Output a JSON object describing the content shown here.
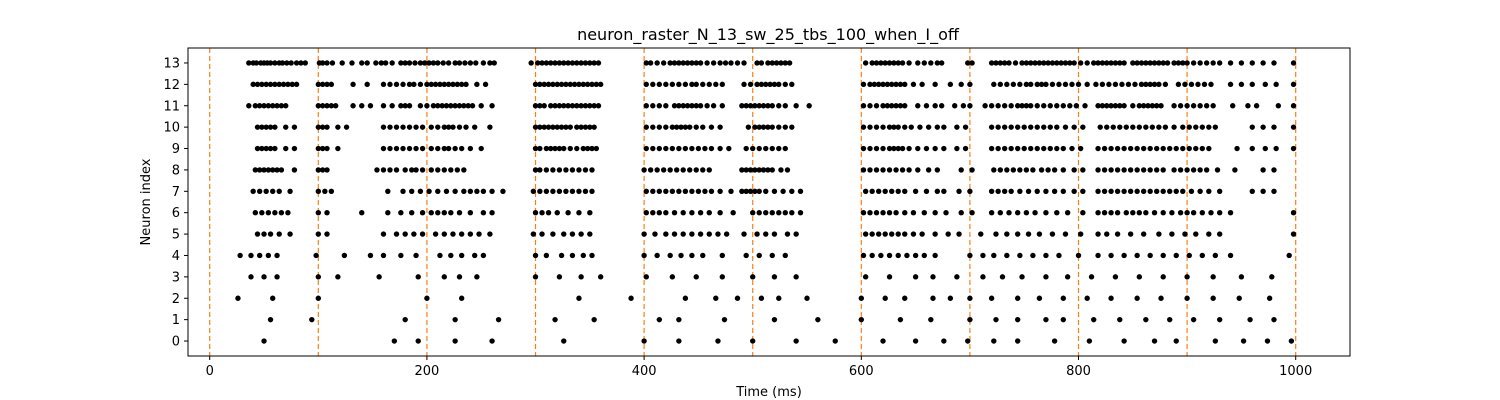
{
  "chart_data": {
    "type": "scatter",
    "title": "neuron_raster_N_13_sw_25_tbs_100_when_I_off",
    "xlabel": "Time (ms)",
    "ylabel": "Neuron index",
    "xlim": [
      -20,
      1050
    ],
    "ylim": [
      -0.7,
      13.7
    ],
    "xticks": [
      0,
      200,
      400,
      600,
      800,
      1000
    ],
    "yticks": [
      0,
      1,
      2,
      3,
      4,
      5,
      6,
      7,
      8,
      9,
      10,
      11,
      12,
      13
    ],
    "grid": false,
    "marker_color": "#000000",
    "vline_color": "#ff7f0e",
    "vlines": [
      0,
      100,
      200,
      300,
      400,
      500,
      600,
      700,
      800,
      900,
      1000
    ],
    "series": [
      {
        "neuron": 13,
        "times": [
          36,
          40,
          43,
          47,
          50,
          53,
          56,
          60,
          64,
          67,
          71,
          75,
          80,
          84,
          88,
          101,
          104,
          108,
          113,
          122,
          131,
          140,
          145,
          153,
          158,
          162,
          168,
          176,
          180,
          184,
          189,
          194,
          198,
          202,
          206,
          210,
          215,
          220,
          226,
          230,
          235,
          240,
          245,
          252,
          258,
          262,
          296,
          302,
          306,
          310,
          314,
          318,
          322,
          326,
          330,
          334,
          338,
          342,
          346,
          350,
          354,
          358,
          402,
          406,
          412,
          418,
          424,
          428,
          432,
          436,
          440,
          444,
          448,
          452,
          458,
          464,
          470,
          475,
          480,
          486,
          492,
          504,
          508,
          514,
          518,
          522,
          526,
          530,
          534,
          604,
          610,
          614,
          618,
          622,
          626,
          630,
          634,
          638,
          644,
          652,
          658,
          664,
          670,
          674,
          698,
          702,
          720,
          724,
          728,
          732,
          736,
          742,
          748,
          752,
          756,
          760,
          764,
          768,
          772,
          776,
          780,
          784,
          788,
          792,
          796,
          802,
          808,
          814,
          818,
          822,
          826,
          830,
          834,
          838,
          842,
          850,
          854,
          858,
          862,
          866,
          870,
          874,
          878,
          882,
          888,
          892,
          896,
          900,
          906,
          912,
          918,
          924,
          930,
          940,
          950,
          960,
          970,
          980,
          998
        ]
      },
      {
        "neuron": 12,
        "times": [
          40,
          44,
          48,
          52,
          56,
          60,
          64,
          68,
          72,
          76,
          80,
          100,
          104,
          108,
          112,
          132,
          145,
          160,
          166,
          172,
          178,
          184,
          188,
          194,
          200,
          204,
          208,
          212,
          216,
          220,
          224,
          228,
          232,
          236,
          246,
          254,
          300,
          304,
          308,
          312,
          316,
          320,
          324,
          328,
          332,
          336,
          340,
          344,
          348,
          352,
          356,
          360,
          402,
          408,
          414,
          420,
          426,
          432,
          438,
          444,
          448,
          454,
          460,
          466,
          472,
          492,
          498,
          504,
          508,
          512,
          516,
          520,
          524,
          530,
          536,
          602,
          608,
          612,
          616,
          620,
          624,
          628,
          632,
          636,
          640,
          648,
          656,
          668,
          682,
          692,
          700,
          722,
          728,
          734,
          740,
          746,
          752,
          756,
          762,
          766,
          770,
          776,
          782,
          788,
          794,
          800,
          808,
          816,
          822,
          828,
          834,
          840,
          846,
          852,
          858,
          862,
          866,
          870,
          874,
          880,
          892,
          898,
          904,
          910,
          916,
          922,
          940,
          950,
          960,
          972,
          982,
          998
        ]
      },
      {
        "neuron": 11,
        "times": [
          36,
          42,
          46,
          50,
          54,
          58,
          62,
          66,
          70,
          100,
          104,
          108,
          112,
          116,
          132,
          140,
          148,
          160,
          168,
          176,
          180,
          184,
          194,
          200,
          206,
          210,
          214,
          218,
          222,
          226,
          230,
          234,
          238,
          242,
          250,
          260,
          300,
          304,
          308,
          314,
          318,
          322,
          326,
          330,
          334,
          338,
          342,
          346,
          350,
          354,
          358,
          402,
          408,
          414,
          420,
          428,
          432,
          436,
          440,
          444,
          448,
          452,
          458,
          464,
          472,
          490,
          494,
          498,
          502,
          506,
          510,
          514,
          518,
          524,
          530,
          540,
          552,
          602,
          608,
          614,
          620,
          624,
          628,
          632,
          636,
          640,
          652,
          660,
          668,
          674,
          686,
          694,
          700,
          714,
          720,
          726,
          732,
          738,
          744,
          748,
          752,
          756,
          762,
          768,
          774,
          780,
          786,
          792,
          798,
          806,
          818,
          822,
          826,
          830,
          834,
          838,
          842,
          850,
          856,
          860,
          864,
          868,
          872,
          876,
          888,
          894,
          900,
          906,
          912,
          918,
          924,
          942,
          956,
          964,
          984,
          998
        ]
      },
      {
        "neuron": 10,
        "times": [
          44,
          48,
          52,
          56,
          60,
          70,
          78,
          100,
          104,
          108,
          118,
          126,
          160,
          166,
          172,
          178,
          184,
          190,
          196,
          204,
          210,
          216,
          220,
          224,
          230,
          236,
          244,
          258,
          300,
          304,
          308,
          312,
          316,
          320,
          324,
          328,
          332,
          338,
          342,
          346,
          350,
          354,
          402,
          408,
          414,
          420,
          426,
          430,
          434,
          438,
          442,
          448,
          454,
          462,
          470,
          496,
          502,
          506,
          510,
          514,
          518,
          524,
          530,
          536,
          602,
          608,
          614,
          620,
          626,
          630,
          634,
          640,
          646,
          654,
          662,
          670,
          676,
          688,
          696,
          720,
          726,
          732,
          738,
          744,
          750,
          756,
          762,
          768,
          774,
          780,
          788,
          796,
          804,
          820,
          826,
          832,
          838,
          844,
          850,
          856,
          862,
          868,
          874,
          880,
          888,
          896,
          902,
          908,
          914,
          920,
          926,
          960,
          970,
          980,
          998
        ]
      },
      {
        "neuron": 9,
        "times": [
          44,
          48,
          52,
          56,
          60,
          70,
          78,
          100,
          104,
          108,
          118,
          160,
          166,
          172,
          178,
          184,
          190,
          196,
          204,
          210,
          216,
          220,
          226,
          232,
          240,
          250,
          300,
          304,
          310,
          314,
          318,
          322,
          326,
          332,
          338,
          344,
          348,
          352,
          356,
          402,
          408,
          414,
          420,
          426,
          432,
          438,
          444,
          450,
          456,
          462,
          470,
          478,
          494,
          500,
          506,
          512,
          518,
          524,
          530,
          602,
          608,
          614,
          620,
          626,
          630,
          634,
          638,
          644,
          652,
          660,
          668,
          676,
          688,
          696,
          720,
          726,
          732,
          738,
          744,
          750,
          756,
          762,
          768,
          774,
          780,
          786,
          794,
          802,
          818,
          824,
          830,
          836,
          842,
          848,
          854,
          860,
          866,
          872,
          878,
          884,
          890,
          896,
          902,
          908,
          914,
          920,
          946,
          960,
          972,
          982,
          998
        ]
      },
      {
        "neuron": 8,
        "times": [
          42,
          46,
          50,
          54,
          58,
          62,
          66,
          78,
          100,
          104,
          108,
          154,
          160,
          166,
          172,
          180,
          186,
          190,
          196,
          204,
          210,
          216,
          222,
          228,
          234,
          300,
          304,
          310,
          316,
          322,
          328,
          334,
          340,
          346,
          352,
          400,
          406,
          412,
          418,
          424,
          430,
          436,
          442,
          448,
          454,
          460,
          490,
          494,
          498,
          502,
          506,
          510,
          514,
          518,
          526,
          532,
          602,
          608,
          614,
          620,
          626,
          632,
          638,
          644,
          652,
          662,
          670,
          692,
          702,
          722,
          728,
          734,
          740,
          746,
          752,
          758,
          766,
          772,
          778,
          786,
          796,
          804,
          818,
          824,
          830,
          836,
          842,
          848,
          854,
          860,
          866,
          872,
          878,
          888,
          894,
          900,
          906,
          912,
          918,
          928,
          944,
          970,
          980
        ]
      },
      {
        "neuron": 7,
        "times": [
          40,
          46,
          52,
          58,
          64,
          74,
          100,
          106,
          112,
          164,
          178,
          186,
          194,
          202,
          210,
          218,
          226,
          234,
          240,
          246,
          252,
          260,
          270,
          298,
          304,
          310,
          316,
          322,
          328,
          334,
          340,
          346,
          352,
          402,
          408,
          414,
          420,
          426,
          432,
          438,
          444,
          450,
          456,
          462,
          470,
          480,
          490,
          494,
          498,
          502,
          506,
          512,
          520,
          528,
          536,
          544,
          604,
          610,
          616,
          622,
          628,
          634,
          640,
          650,
          660,
          670,
          676,
          690,
          700,
          720,
          726,
          732,
          738,
          746,
          754,
          762,
          770,
          778,
          786,
          796,
          804,
          818,
          824,
          830,
          836,
          842,
          848,
          854,
          860,
          866,
          872,
          878,
          884,
          890,
          896,
          904,
          912,
          920,
          930,
          960,
          970,
          980
        ]
      },
      {
        "neuron": 6,
        "times": [
          42,
          48,
          54,
          60,
          66,
          72,
          100,
          108,
          140,
          164,
          176,
          186,
          196,
          204,
          210,
          216,
          222,
          230,
          240,
          252,
          260,
          300,
          306,
          312,
          320,
          330,
          340,
          350,
          402,
          408,
          414,
          420,
          428,
          436,
          444,
          452,
          460,
          470,
          482,
          500,
          506,
          512,
          518,
          524,
          530,
          536,
          544,
          602,
          608,
          614,
          620,
          626,
          632,
          640,
          648,
          658,
          668,
          678,
          692,
          702,
          720,
          728,
          736,
          744,
          752,
          760,
          770,
          780,
          790,
          804,
          818,
          824,
          830,
          836,
          844,
          850,
          856,
          862,
          870,
          878,
          886,
          894,
          900,
          906,
          914,
          922,
          930,
          940,
          998
        ]
      },
      {
        "neuron": 5,
        "times": [
          44,
          50,
          56,
          64,
          74,
          100,
          108,
          160,
          172,
          180,
          188,
          196,
          208,
          216,
          224,
          232,
          240,
          248,
          258,
          298,
          306,
          316,
          326,
          334,
          342,
          350,
          400,
          410,
          420,
          428,
          436,
          444,
          452,
          460,
          468,
          476,
          492,
          504,
          512,
          520,
          532,
          540,
          604,
          610,
          616,
          622,
          628,
          634,
          640,
          648,
          656,
          668,
          680,
          690,
          710,
          724,
          734,
          744,
          754,
          764,
          776,
          788,
          802,
          818,
          826,
          836,
          848,
          860,
          874,
          886,
          898,
          908,
          920,
          930,
          998
        ]
      },
      {
        "neuron": 4,
        "times": [
          28,
          38,
          46,
          54,
          62,
          98,
          124,
          148,
          160,
          176,
          190,
          212,
          222,
          232,
          244,
          252,
          300,
          310,
          324,
          334,
          344,
          352,
          400,
          412,
          424,
          434,
          444,
          454,
          472,
          494,
          506,
          518,
          530,
          602,
          610,
          618,
          626,
          634,
          642,
          650,
          658,
          668,
          700,
          712,
          722,
          734,
          746,
          758,
          770,
          782,
          800,
          818,
          830,
          842,
          854,
          866,
          878,
          890,
          902,
          914,
          926,
          940,
          994
        ]
      },
      {
        "neuron": 3,
        "times": [
          38,
          50,
          62,
          100,
          118,
          156,
          192,
          216,
          230,
          246,
          300,
          322,
          342,
          360,
          402,
          426,
          448,
          472,
          500,
          520,
          540,
          604,
          626,
          650,
          666,
          688,
          712,
          730,
          748,
          770,
          790,
          812,
          834,
          856,
          878,
          900,
          924,
          950,
          978
        ]
      },
      {
        "neuron": 2,
        "times": [
          26,
          58,
          100,
          200,
          232,
          340,
          388,
          438,
          466,
          486,
          508,
          524,
          550,
          600,
          622,
          640,
          666,
          682,
          700,
          720,
          744,
          764,
          786,
          808,
          830,
          854,
          876,
          900,
          924,
          948,
          976
        ]
      },
      {
        "neuron": 1,
        "times": [
          56,
          94,
          180,
          226,
          266,
          318,
          354,
          414,
          432,
          474,
          520,
          560,
          600,
          636,
          664,
          700,
          724,
          744,
          770,
          786,
          814,
          838,
          862,
          884,
          906,
          930,
          958,
          980
        ]
      },
      {
        "neuron": 0,
        "times": [
          50,
          170,
          192,
          226,
          260,
          326,
          400,
          432,
          468,
          500,
          540,
          576,
          620,
          650,
          676,
          698,
          722,
          744,
          778,
          810,
          842,
          870,
          890,
          926,
          952,
          974,
          996
        ]
      }
    ]
  }
}
